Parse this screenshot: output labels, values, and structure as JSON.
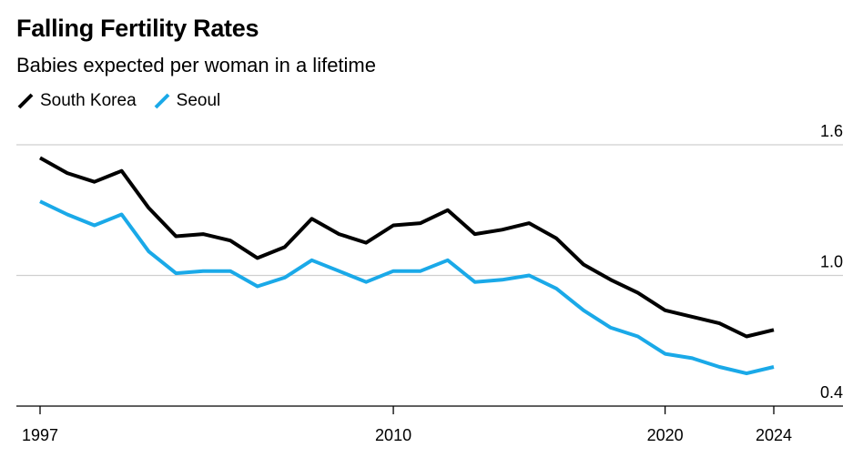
{
  "chart_data": {
    "type": "line",
    "title": "Falling Fertility Rates",
    "subtitle": "Babies expected per woman in a lifetime",
    "x": [
      1997,
      1998,
      1999,
      2000,
      2001,
      2002,
      2003,
      2004,
      2005,
      2006,
      2007,
      2008,
      2009,
      2010,
      2011,
      2012,
      2013,
      2014,
      2015,
      2016,
      2017,
      2018,
      2019,
      2020,
      2021,
      2022,
      2023,
      2024
    ],
    "series": [
      {
        "name": "South Korea",
        "color": "#000000",
        "values": [
          1.54,
          1.47,
          1.43,
          1.48,
          1.31,
          1.18,
          1.19,
          1.16,
          1.08,
          1.13,
          1.26,
          1.19,
          1.15,
          1.23,
          1.24,
          1.3,
          1.19,
          1.21,
          1.24,
          1.17,
          1.05,
          0.98,
          0.92,
          0.84,
          0.81,
          0.78,
          0.72,
          0.75
        ]
      },
      {
        "name": "Seoul",
        "color": "#1aa9e8",
        "values": [
          1.34,
          1.28,
          1.23,
          1.28,
          1.11,
          1.01,
          1.02,
          1.02,
          0.95,
          0.99,
          1.07,
          1.02,
          0.97,
          1.02,
          1.02,
          1.07,
          0.97,
          0.98,
          1.0,
          0.94,
          0.84,
          0.76,
          0.72,
          0.64,
          0.62,
          0.58,
          0.55,
          0.58
        ]
      }
    ],
    "y_ticks": [
      "1.6",
      "1.0",
      "0.4"
    ],
    "x_ticks": [
      "1997",
      "2010",
      "2020",
      "2024"
    ],
    "ylim": [
      0.4,
      1.6
    ],
    "grid": true,
    "legend_position": "top-left"
  }
}
